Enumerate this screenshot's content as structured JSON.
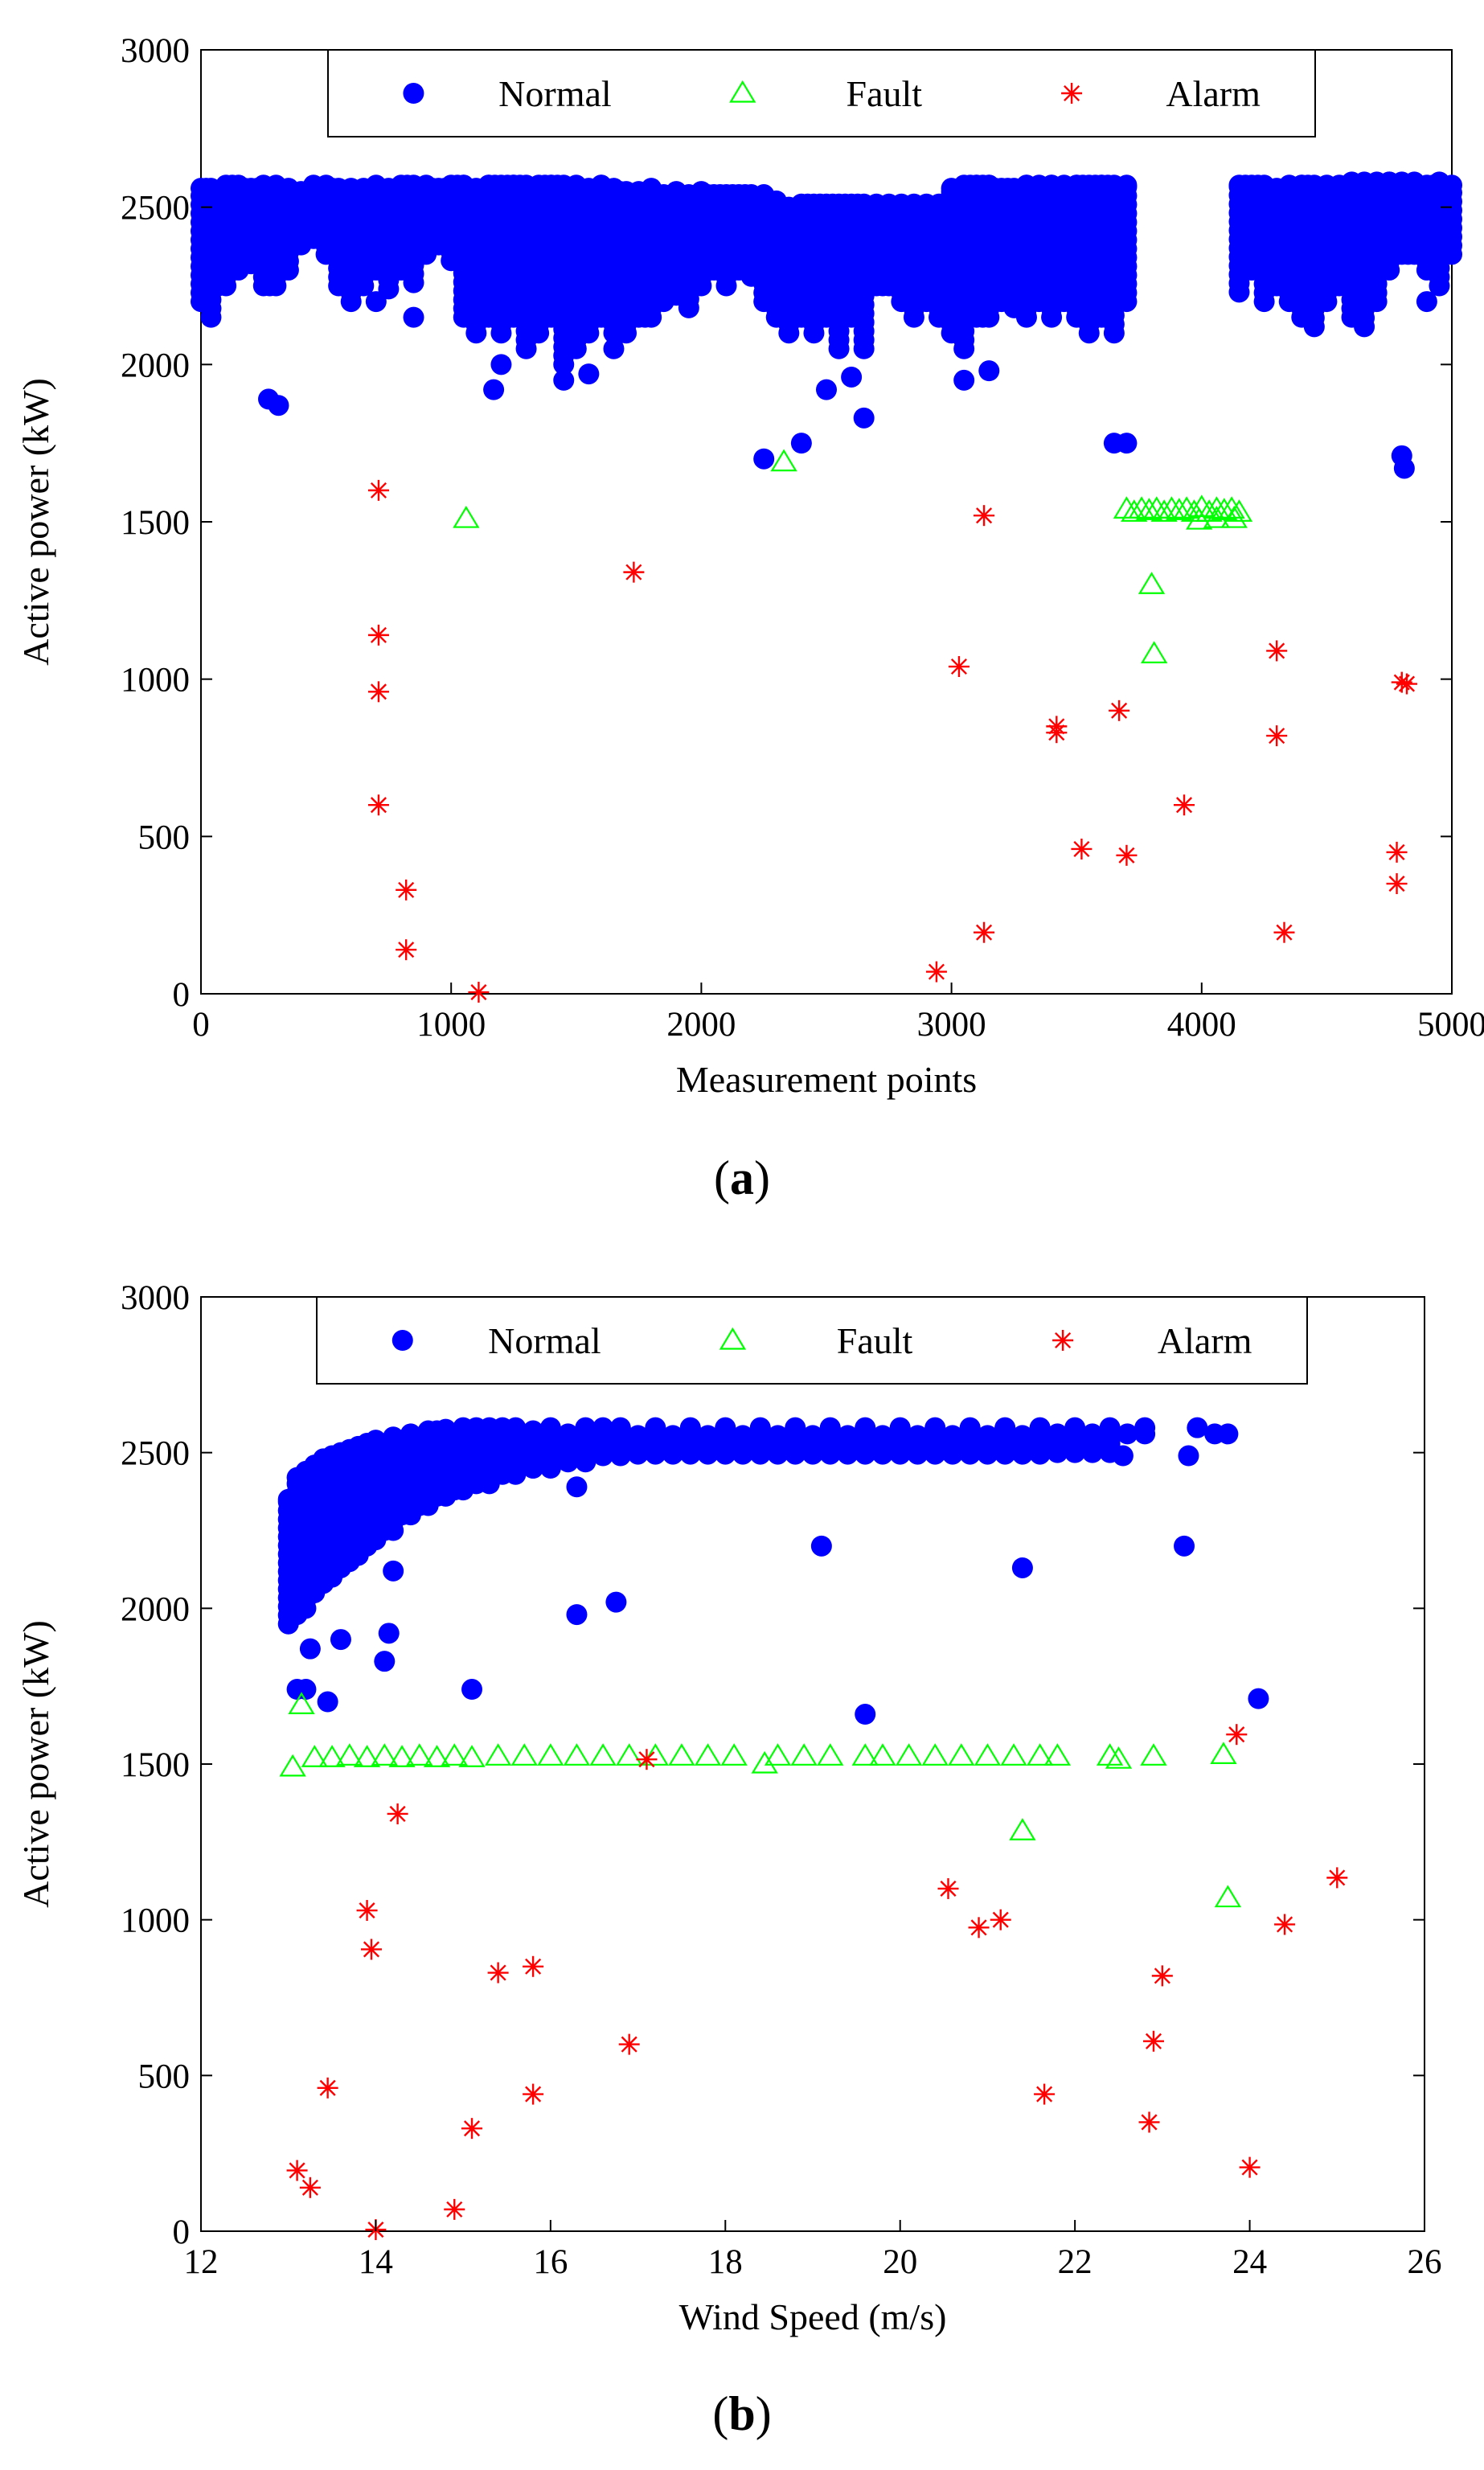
{
  "chart_data": [
    {
      "type": "scatter",
      "panel": "(a)",
      "caption_letter": "a",
      "xlabel": "Measurement points",
      "ylabel": "Active power (kW)",
      "xlim": [
        0,
        5000
      ],
      "ylim": [
        0,
        3000
      ],
      "xticks": [
        "0",
        "1000",
        "2000",
        "3000",
        "4000",
        "5000"
      ],
      "yticks": [
        "0",
        "500",
        "1000",
        "1500",
        "2000",
        "2500",
        "3000"
      ],
      "legend": [
        "Normal",
        "Fault",
        "Alarm"
      ],
      "legend_position": "top",
      "normal_bands": [
        [
          0,
          2200,
          2560
        ],
        [
          40,
          2150,
          2560
        ],
        [
          100,
          2250,
          2570
        ],
        [
          150,
          2300,
          2570
        ],
        [
          200,
          2320,
          2560
        ],
        [
          250,
          2250,
          2570
        ],
        [
          300,
          2250,
          2570
        ],
        [
          350,
          2300,
          2560
        ],
        [
          400,
          2380,
          2550
        ],
        [
          450,
          2400,
          2570
        ],
        [
          500,
          2350,
          2570
        ],
        [
          550,
          2250,
          2560
        ],
        [
          600,
          2200,
          2560
        ],
        [
          650,
          2250,
          2560
        ],
        [
          700,
          2300,
          2570
        ],
        [
          750,
          2240,
          2560
        ],
        [
          800,
          2300,
          2570
        ],
        [
          850,
          2260,
          2570
        ],
        [
          900,
          2350,
          2570
        ],
        [
          950,
          2380,
          2560
        ],
        [
          1000,
          2330,
          2570
        ],
        [
          1050,
          2150,
          2570
        ],
        [
          1100,
          2100,
          2560
        ],
        [
          1150,
          2150,
          2570
        ],
        [
          1200,
          2100,
          2570
        ],
        [
          1250,
          2150,
          2570
        ],
        [
          1300,
          2050,
          2570
        ],
        [
          1350,
          2100,
          2570
        ],
        [
          1400,
          2150,
          2570
        ],
        [
          1450,
          2000,
          2570
        ],
        [
          1500,
          2050,
          2570
        ],
        [
          1550,
          2100,
          2560
        ],
        [
          1600,
          2150,
          2570
        ],
        [
          1650,
          2100,
          2560
        ],
        [
          1700,
          2100,
          2550
        ],
        [
          1750,
          2150,
          2550
        ],
        [
          1800,
          2150,
          2560
        ],
        [
          1850,
          2200,
          2540
        ],
        [
          1900,
          2220,
          2550
        ],
        [
          1950,
          2180,
          2540
        ],
        [
          2000,
          2250,
          2550
        ],
        [
          2050,
          2300,
          2540
        ],
        [
          2100,
          2250,
          2540
        ],
        [
          2150,
          2300,
          2540
        ],
        [
          2200,
          2280,
          2540
        ],
        [
          2250,
          2200,
          2540
        ],
        [
          2300,
          2150,
          2520
        ],
        [
          2350,
          2100,
          2500
        ],
        [
          2400,
          2150,
          2510
        ],
        [
          2450,
          2100,
          2510
        ],
        [
          2500,
          2150,
          2510
        ],
        [
          2550,
          2050,
          2510
        ],
        [
          2600,
          2150,
          2510
        ],
        [
          2650,
          2050,
          2510
        ],
        [
          2700,
          2250,
          2510
        ],
        [
          2750,
          2250,
          2510
        ],
        [
          2800,
          2200,
          2510
        ],
        [
          2850,
          2150,
          2510
        ],
        [
          2900,
          2200,
          2510
        ],
        [
          2950,
          2150,
          2510
        ],
        [
          3000,
          2100,
          2560
        ],
        [
          3050,
          2050,
          2570
        ],
        [
          3100,
          2150,
          2570
        ],
        [
          3150,
          2150,
          2570
        ],
        [
          3200,
          2200,
          2560
        ],
        [
          3250,
          2180,
          2560
        ],
        [
          3300,
          2150,
          2570
        ],
        [
          3350,
          2200,
          2570
        ],
        [
          3400,
          2150,
          2570
        ],
        [
          3450,
          2200,
          2570
        ],
        [
          3500,
          2150,
          2570
        ],
        [
          3550,
          2100,
          2570
        ],
        [
          3600,
          2150,
          2570
        ],
        [
          3650,
          2100,
          2570
        ],
        [
          3700,
          2200,
          2570
        ],
        [
          4150,
          2230,
          2570
        ],
        [
          4200,
          2300,
          2570
        ],
        [
          4250,
          2200,
          2570
        ],
        [
          4300,
          2250,
          2560
        ],
        [
          4350,
          2200,
          2570
        ],
        [
          4400,
          2150,
          2570
        ],
        [
          4450,
          2120,
          2570
        ],
        [
          4500,
          2200,
          2570
        ],
        [
          4550,
          2250,
          2570
        ],
        [
          4600,
          2150,
          2580
        ],
        [
          4650,
          2120,
          2580
        ],
        [
          4700,
          2200,
          2580
        ],
        [
          4750,
          2300,
          2580
        ],
        [
          4800,
          2350,
          2580
        ],
        [
          4850,
          2350,
          2580
        ],
        [
          4900,
          2300,
          2570
        ],
        [
          4950,
          2250,
          2580
        ],
        [
          5000,
          2350,
          2570
        ]
      ],
      "normal": [
        [
          270,
          1890
        ],
        [
          310,
          1870
        ],
        [
          700,
          2200
        ],
        [
          850,
          2150
        ],
        [
          1170,
          1920
        ],
        [
          1200,
          2000
        ],
        [
          1450,
          1950
        ],
        [
          1550,
          1970
        ],
        [
          1650,
          2050
        ],
        [
          2250,
          1700
        ],
        [
          2400,
          1750
        ],
        [
          2500,
          1920
        ],
        [
          2650,
          1830
        ],
        [
          2600,
          1960
        ],
        [
          3050,
          1950
        ],
        [
          3150,
          1980
        ],
        [
          3650,
          1750
        ],
        [
          3700,
          1750
        ],
        [
          4800,
          1710
        ],
        [
          4810,
          1670
        ],
        [
          4900,
          2200
        ]
      ],
      "fault": [
        [
          1060,
          1510
        ],
        [
          2330,
          1690
        ],
        [
          3700,
          1540
        ],
        [
          3730,
          1530
        ],
        [
          3760,
          1540
        ],
        [
          3790,
          1535
        ],
        [
          3820,
          1540
        ],
        [
          3850,
          1530
        ],
        [
          3880,
          1540
        ],
        [
          3910,
          1535
        ],
        [
          3940,
          1540
        ],
        [
          3970,
          1530
        ],
        [
          4000,
          1545
        ],
        [
          4030,
          1530
        ],
        [
          4060,
          1540
        ],
        [
          4090,
          1535
        ],
        [
          4120,
          1540
        ],
        [
          4150,
          1530
        ],
        [
          3990,
          1505
        ],
        [
          4060,
          1510
        ],
        [
          4130,
          1510
        ],
        [
          3800,
          1300
        ],
        [
          3810,
          1080
        ]
      ],
      "alarm": [
        [
          710,
          1600
        ],
        [
          710,
          1140
        ],
        [
          710,
          960
        ],
        [
          710,
          600
        ],
        [
          820,
          330
        ],
        [
          820,
          140
        ],
        [
          1110,
          5
        ],
        [
          1730,
          1340
        ],
        [
          2940,
          70
        ],
        [
          3030,
          1040
        ],
        [
          3130,
          1520
        ],
        [
          3130,
          195
        ],
        [
          3420,
          850
        ],
        [
          3420,
          830
        ],
        [
          3520,
          460
        ],
        [
          3670,
          900
        ],
        [
          3700,
          440
        ],
        [
          3930,
          600
        ],
        [
          4300,
          1090
        ],
        [
          4300,
          820
        ],
        [
          4330,
          195
        ],
        [
          4780,
          450
        ],
        [
          4780,
          350
        ],
        [
          4800,
          990
        ],
        [
          4820,
          985
        ]
      ]
    },
    {
      "type": "scatter",
      "panel": "(b)",
      "caption_letter": "b",
      "xlabel": "Wind Speed (m/s)",
      "ylabel": "Active power (kW)",
      "xlim": [
        12,
        26
      ],
      "ylim": [
        0,
        3000
      ],
      "xticks": [
        "12",
        "14",
        "16",
        "18",
        "20",
        "22",
        "24",
        "26"
      ],
      "yticks": [
        "0",
        "500",
        "1000",
        "1500",
        "2000",
        "2500",
        "3000"
      ],
      "legend": [
        "Normal",
        "Fault",
        "Alarm"
      ],
      "legend_position": "top",
      "normal_bands": [
        [
          13.0,
          1950,
          2350
        ],
        [
          13.1,
          1980,
          2420
        ],
        [
          13.2,
          2000,
          2440
        ],
        [
          13.3,
          2050,
          2460
        ],
        [
          13.4,
          2080,
          2480
        ],
        [
          13.5,
          2100,
          2490
        ],
        [
          13.6,
          2130,
          2500
        ],
        [
          13.7,
          2150,
          2510
        ],
        [
          13.8,
          2170,
          2520
        ],
        [
          13.9,
          2200,
          2530
        ],
        [
          14.0,
          2220,
          2540
        ],
        [
          14.2,
          2250,
          2550
        ],
        [
          14.4,
          2300,
          2560
        ],
        [
          14.6,
          2330,
          2570
        ],
        [
          14.8,
          2360,
          2575
        ],
        [
          15.0,
          2380,
          2580
        ],
        [
          15.3,
          2400,
          2580
        ],
        [
          15.6,
          2430,
          2580
        ],
        [
          16.0,
          2450,
          2580
        ],
        [
          16.4,
          2470,
          2580
        ],
        [
          16.8,
          2490,
          2580
        ],
        [
          17.2,
          2495,
          2580
        ],
        [
          17.6,
          2495,
          2580
        ],
        [
          18.0,
          2495,
          2580
        ],
        [
          18.4,
          2495,
          2580
        ],
        [
          18.8,
          2495,
          2580
        ],
        [
          19.2,
          2495,
          2580
        ],
        [
          19.6,
          2495,
          2580
        ],
        [
          20.0,
          2495,
          2580
        ],
        [
          20.4,
          2495,
          2580
        ],
        [
          20.8,
          2495,
          2580
        ],
        [
          21.2,
          2495,
          2580
        ],
        [
          21.6,
          2495,
          2580
        ],
        [
          22.0,
          2500,
          2580
        ],
        [
          22.4,
          2500,
          2580
        ],
        [
          22.8,
          2560,
          2580
        ]
      ],
      "normal": [
        [
          13.1,
          1740
        ],
        [
          13.2,
          1740
        ],
        [
          13.25,
          1870
        ],
        [
          13.45,
          1700
        ],
        [
          13.6,
          1900
        ],
        [
          14.1,
          1830
        ],
        [
          14.15,
          1920
        ],
        [
          14.2,
          2120
        ],
        [
          15.1,
          1740
        ],
        [
          15.8,
          2450
        ],
        [
          16.3,
          1980
        ],
        [
          16.3,
          2390
        ],
        [
          16.75,
          2020
        ],
        [
          19.1,
          2200
        ],
        [
          19.6,
          1660
        ],
        [
          21.4,
          2130
        ],
        [
          22.55,
          2490
        ],
        [
          23.25,
          2200
        ],
        [
          23.3,
          2490
        ],
        [
          23.4,
          2580
        ],
        [
          23.6,
          2560
        ],
        [
          23.75,
          2560
        ],
        [
          24.1,
          1710
        ]
      ],
      "fault": [
        [
          13.05,
          1490
        ],
        [
          13.15,
          1690
        ],
        [
          13.3,
          1520
        ],
        [
          13.5,
          1520
        ],
        [
          13.7,
          1525
        ],
        [
          13.9,
          1520
        ],
        [
          14.1,
          1525
        ],
        [
          14.3,
          1520
        ],
        [
          14.5,
          1525
        ],
        [
          14.7,
          1520
        ],
        [
          14.9,
          1525
        ],
        [
          15.1,
          1520
        ],
        [
          15.4,
          1525
        ],
        [
          15.7,
          1525
        ],
        [
          16.0,
          1525
        ],
        [
          16.3,
          1525
        ],
        [
          16.6,
          1525
        ],
        [
          16.9,
          1525
        ],
        [
          17.2,
          1525
        ],
        [
          17.5,
          1525
        ],
        [
          17.8,
          1525
        ],
        [
          18.1,
          1525
        ],
        [
          18.45,
          1500
        ],
        [
          18.6,
          1525
        ],
        [
          18.9,
          1525
        ],
        [
          19.2,
          1525
        ],
        [
          19.6,
          1525
        ],
        [
          19.8,
          1525
        ],
        [
          20.1,
          1525
        ],
        [
          20.4,
          1525
        ],
        [
          20.7,
          1525
        ],
        [
          21.0,
          1525
        ],
        [
          21.3,
          1525
        ],
        [
          21.4,
          1285
        ],
        [
          21.6,
          1525
        ],
        [
          21.8,
          1525
        ],
        [
          22.4,
          1525
        ],
        [
          22.5,
          1515
        ],
        [
          22.9,
          1525
        ],
        [
          23.7,
          1530
        ],
        [
          23.75,
          1070
        ]
      ],
      "alarm": [
        [
          13.1,
          195
        ],
        [
          13.25,
          140
        ],
        [
          13.45,
          460
        ],
        [
          13.9,
          1030
        ],
        [
          13.95,
          905
        ],
        [
          14.0,
          5
        ],
        [
          14.25,
          1340
        ],
        [
          14.9,
          70
        ],
        [
          15.1,
          330
        ],
        [
          15.4,
          830
        ],
        [
          15.8,
          850
        ],
        [
          15.8,
          440
        ],
        [
          16.9,
          600
        ],
        [
          17.1,
          1515
        ],
        [
          20.55,
          1100
        ],
        [
          20.9,
          975
        ],
        [
          21.15,
          1000
        ],
        [
          21.65,
          440
        ],
        [
          22.85,
          350
        ],
        [
          22.9,
          610
        ],
        [
          23.0,
          820
        ],
        [
          23.85,
          1595
        ],
        [
          24.0,
          205
        ],
        [
          24.4,
          985
        ],
        [
          25.0,
          1135
        ]
      ]
    }
  ],
  "colors": {
    "normal": "#0000ff",
    "fault": "#00ff00",
    "alarm": "#ff0000",
    "axis": "#000000"
  }
}
